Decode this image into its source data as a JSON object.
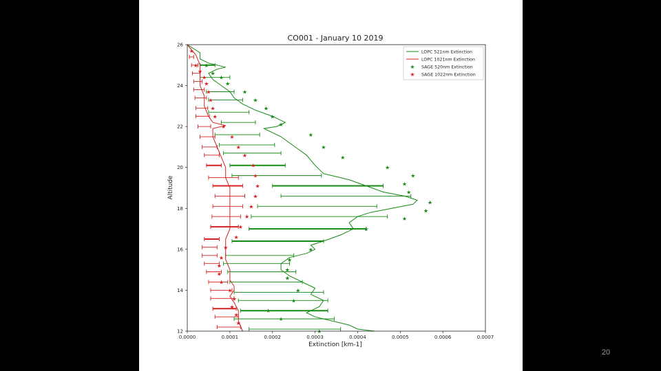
{
  "slide": {
    "page_number": "20"
  },
  "chart_data": {
    "type": "line",
    "title": "CO001 - January 10 2019",
    "xlabel": "Extinction [km-1]",
    "ylabel": "Altitude",
    "xlim": [
      0.0,
      0.0007
    ],
    "ylim": [
      12,
      26
    ],
    "xticks": [
      "0.0000",
      "0.0001",
      "0.0002",
      "0.0003",
      "0.0004",
      "0.0005",
      "0.0006",
      "0.0007"
    ],
    "yticks": [
      "12",
      "14",
      "16",
      "18",
      "20",
      "22",
      "24",
      "26"
    ],
    "legend_position": "top-right",
    "colors": {
      "green": "#138a13",
      "red": "#d42020"
    },
    "series": [
      {
        "name": "LOPC 521nm Extinction",
        "kind": "line",
        "color": "green",
        "points": [
          [
            0.0,
            26.0
          ],
          [
            3e-05,
            25.6
          ],
          [
            3e-05,
            25.3
          ],
          [
            5e-05,
            25.1
          ],
          [
            7e-05,
            25.0
          ],
          [
            9e-05,
            24.9
          ],
          [
            7e-05,
            24.8
          ],
          [
            5e-05,
            24.6
          ],
          [
            6e-05,
            24.3
          ],
          [
            8e-05,
            24.0
          ],
          [
            0.0001,
            23.7
          ],
          [
            0.00011,
            23.4
          ],
          [
            0.00013,
            23.1
          ],
          [
            0.00016,
            22.8
          ],
          [
            0.0002,
            22.5
          ],
          [
            0.00023,
            22.2
          ],
          [
            0.00021,
            22.0
          ],
          [
            0.00018,
            21.9
          ],
          [
            0.0002,
            21.7
          ],
          [
            0.00022,
            21.5
          ],
          [
            0.00024,
            21.2
          ],
          [
            0.00026,
            20.9
          ],
          [
            0.00028,
            20.6
          ],
          [
            0.0003,
            20.1
          ],
          [
            0.00032,
            19.7
          ],
          [
            0.00038,
            19.4
          ],
          [
            0.00042,
            19.1
          ],
          [
            0.00046,
            18.8
          ],
          [
            0.00051,
            18.6
          ],
          [
            0.00054,
            18.4
          ],
          [
            0.00053,
            18.2
          ],
          [
            0.00048,
            18.0
          ],
          [
            0.00043,
            17.8
          ],
          [
            0.0004,
            17.6
          ],
          [
            0.00038,
            17.3
          ],
          [
            0.00039,
            17.0
          ],
          [
            0.00036,
            16.7
          ],
          [
            0.00032,
            16.4
          ],
          [
            0.00029,
            16.2
          ],
          [
            0.0003,
            16.0
          ],
          [
            0.00028,
            15.8
          ],
          [
            0.00024,
            15.6
          ],
          [
            0.00022,
            15.3
          ],
          [
            0.00022,
            15.0
          ],
          [
            0.00024,
            14.7
          ],
          [
            0.00027,
            14.4
          ],
          [
            0.0003,
            14.1
          ],
          [
            0.00029,
            13.8
          ],
          [
            0.00032,
            13.5
          ],
          [
            0.00031,
            13.2
          ],
          [
            0.00028,
            12.9
          ],
          [
            0.0003,
            12.7
          ],
          [
            0.00034,
            12.5
          ],
          [
            0.00038,
            12.3
          ],
          [
            0.0004,
            12.1
          ],
          [
            0.00044,
            12.0
          ]
        ]
      },
      {
        "name": "LOPC 1021nm Extinction",
        "kind": "line",
        "color": "red",
        "points": [
          [
            0.0,
            26.0
          ],
          [
            2e-05,
            25.5
          ],
          [
            3e-05,
            25.0
          ],
          [
            3e-05,
            24.5
          ],
          [
            3e-05,
            24.0
          ],
          [
            4e-05,
            23.5
          ],
          [
            4e-05,
            23.0
          ],
          [
            5e-05,
            22.5
          ],
          [
            6e-05,
            22.2
          ],
          [
            9e-05,
            22.05
          ],
          [
            6e-05,
            21.9
          ],
          [
            6e-05,
            21.5
          ],
          [
            7e-05,
            21.0
          ],
          [
            8e-05,
            20.5
          ],
          [
            9e-05,
            20.0
          ],
          [
            9e-05,
            19.5
          ],
          [
            0.0001,
            19.0
          ],
          [
            0.0001,
            18.5
          ],
          [
            0.0001,
            18.0
          ],
          [
            0.0001,
            17.5
          ],
          [
            0.0001,
            17.0
          ],
          [
            9e-05,
            16.5
          ],
          [
            9e-05,
            16.0
          ],
          [
            9e-05,
            15.5
          ],
          [
            0.0001,
            15.0
          ],
          [
            0.0001,
            14.5
          ],
          [
            0.00011,
            14.2
          ],
          [
            0.00011,
            14.0
          ],
          [
            0.0001,
            13.7
          ],
          [
            0.00011,
            13.4
          ],
          [
            0.00012,
            13.0
          ],
          [
            0.00012,
            12.5
          ],
          [
            0.00013,
            12.0
          ]
        ]
      },
      {
        "name": "SAGE 520nm Extinction",
        "kind": "scatter",
        "marker": "star",
        "color": "green",
        "points": [
          [
            4.5e-05,
            25.0
          ],
          [
            6e-05,
            24.6
          ],
          [
            8e-05,
            24.4
          ],
          [
            9.5e-05,
            24.1
          ],
          [
            0.000135,
            23.7
          ],
          [
            0.00016,
            23.3
          ],
          [
            0.000185,
            22.9
          ],
          [
            0.0002,
            22.5
          ],
          [
            0.00022,
            22.1
          ],
          [
            0.00029,
            21.6
          ],
          [
            0.00032,
            21.0
          ],
          [
            0.000365,
            20.5
          ],
          [
            0.00047,
            20.0
          ],
          [
            0.00053,
            19.6
          ],
          [
            0.00051,
            19.2
          ],
          [
            0.00052,
            18.8
          ],
          [
            0.00057,
            18.3
          ],
          [
            0.00056,
            17.9
          ],
          [
            0.00051,
            17.5
          ],
          [
            0.00042,
            17.0
          ],
          [
            0.00029,
            16.0
          ],
          [
            0.00024,
            15.5
          ],
          [
            0.000235,
            15.0
          ],
          [
            0.000235,
            14.6
          ],
          [
            0.00026,
            14.0
          ],
          [
            0.00025,
            13.5
          ],
          [
            0.00019,
            13.0
          ],
          [
            0.00022,
            12.6
          ],
          [
            0.00031,
            12.0
          ]
        ]
      },
      {
        "name": "SAGE 1022nm Extinction",
        "kind": "scatter",
        "marker": "star",
        "color": "red",
        "points": [
          [
            1e-05,
            25.7
          ],
          [
            2e-05,
            25.0
          ],
          [
            3e-05,
            24.7
          ],
          [
            4e-05,
            24.4
          ],
          [
            4.5e-05,
            24.1
          ],
          [
            5e-05,
            23.7
          ],
          [
            5.5e-05,
            23.3
          ],
          [
            6e-05,
            22.9
          ],
          [
            6.5e-05,
            22.5
          ],
          [
            8.5e-05,
            22.0
          ],
          [
            0.000105,
            21.5
          ],
          [
            0.00012,
            21.0
          ],
          [
            0.000135,
            20.6
          ],
          [
            0.000155,
            20.1
          ],
          [
            0.00016,
            19.6
          ],
          [
            0.000165,
            19.1
          ],
          [
            0.00016,
            18.6
          ],
          [
            0.00015,
            18.1
          ],
          [
            0.00014,
            17.6
          ],
          [
            0.000125,
            17.1
          ],
          [
            0.000115,
            16.6
          ],
          [
            9e-05,
            16.1
          ],
          [
            8e-05,
            15.6
          ],
          [
            7.5e-05,
            15.2
          ],
          [
            7.5e-05,
            14.8
          ],
          [
            8e-05,
            14.4
          ],
          [
            0.0001,
            14.0
          ],
          [
            0.00011,
            13.6
          ],
          [
            0.000105,
            13.2
          ],
          [
            0.000115,
            12.8
          ],
          [
            0.00012,
            12.4
          ]
        ]
      }
    ],
    "error_bars": [
      {
        "series": "SAGE 520nm Extinction",
        "color": "green",
        "bars": [
          [
            25.0,
            3e-05,
            6.5e-05,
            true
          ],
          [
            24.4,
            3e-05,
            0.0001,
            false
          ],
          [
            23.7,
            4.5e-05,
            0.00011,
            false
          ],
          [
            23.3,
            5e-05,
            0.00013,
            false
          ],
          [
            22.7,
            5e-05,
            0.000145,
            false
          ],
          [
            22.2,
            8e-05,
            0.00016,
            false
          ],
          [
            21.6,
            6.5e-05,
            0.00017,
            false
          ],
          [
            21.1,
            7.5e-05,
            0.000205,
            false
          ],
          [
            20.7,
            8.5e-05,
            0.00022,
            false
          ],
          [
            20.1,
            0.0001,
            0.00023,
            true
          ],
          [
            19.6,
            0.000105,
            0.000315,
            false
          ],
          [
            19.1,
            0.0002,
            0.00046,
            true
          ],
          [
            18.6,
            0.00022,
            0.000525,
            false
          ],
          [
            18.1,
            0.000165,
            0.000445,
            false
          ],
          [
            17.6,
            0.00015,
            0.00047,
            false
          ],
          [
            17.0,
            0.000145,
            0.00042,
            true
          ],
          [
            16.4,
            0.000105,
            0.00032,
            true
          ],
          [
            15.7,
            9e-05,
            0.00025,
            false
          ],
          [
            15.3,
            8.5e-05,
            0.00024,
            false
          ],
          [
            14.9,
            9.5e-05,
            0.000255,
            false
          ],
          [
            14.4,
            0.0001,
            0.00027,
            false
          ],
          [
            13.9,
            0.00011,
            0.00032,
            false
          ],
          [
            13.5,
            0.00012,
            0.00033,
            false
          ],
          [
            13.0,
            0.000125,
            0.00033,
            true
          ],
          [
            12.6,
            0.00011,
            0.000345,
            false
          ],
          [
            12.1,
            0.000145,
            0.00036,
            false
          ]
        ]
      },
      {
        "series": "SAGE 1022nm Extinction",
        "color": "red",
        "bars": [
          [
            25.4,
            5e-06,
            1.5e-05,
            false
          ],
          [
            25.0,
            1e-05,
            2.5e-05,
            false
          ],
          [
            24.6,
            1.2e-05,
            3e-05,
            false
          ],
          [
            24.2,
            1.5e-05,
            3.5e-05,
            false
          ],
          [
            23.8,
            1.5e-05,
            4e-05,
            false
          ],
          [
            23.4,
            1.8e-05,
            4.5e-05,
            false
          ],
          [
            22.9,
            2e-05,
            4.8e-05,
            false
          ],
          [
            22.5,
            2e-05,
            5.2e-05,
            false
          ],
          [
            22.0,
            2.5e-05,
            5.5e-05,
            false
          ],
          [
            21.5,
            3e-05,
            6.5e-05,
            false
          ],
          [
            21.0,
            3.5e-05,
            7e-05,
            false
          ],
          [
            20.6,
            4e-05,
            7.5e-05,
            false
          ],
          [
            20.1,
            4.5e-05,
            8e-05,
            true
          ],
          [
            19.5,
            5e-05,
            0.00012,
            false
          ],
          [
            19.1,
            6e-05,
            0.00013,
            true
          ],
          [
            18.6,
            6.5e-05,
            0.000135,
            false
          ],
          [
            18.1,
            6e-05,
            0.00013,
            false
          ],
          [
            17.6,
            5.8e-05,
            0.000125,
            false
          ],
          [
            17.1,
            5.5e-05,
            0.00012,
            true
          ],
          [
            16.5,
            4e-05,
            7.5e-05,
            true
          ],
          [
            16.1,
            3.5e-05,
            7e-05,
            false
          ],
          [
            15.7,
            3.5e-05,
            7e-05,
            false
          ],
          [
            15.3,
            4e-05,
            7.5e-05,
            false
          ],
          [
            14.9,
            4.5e-05,
            8e-05,
            false
          ],
          [
            14.4,
            5e-05,
            9.5e-05,
            false
          ],
          [
            14.0,
            5.5e-05,
            0.000105,
            false
          ],
          [
            13.6,
            5.5e-05,
            0.00011,
            false
          ],
          [
            13.1,
            6e-05,
            0.000115,
            true
          ],
          [
            12.7,
            6.5e-05,
            0.00012,
            false
          ],
          [
            12.2,
            7e-05,
            0.000125,
            false
          ]
        ]
      }
    ]
  }
}
